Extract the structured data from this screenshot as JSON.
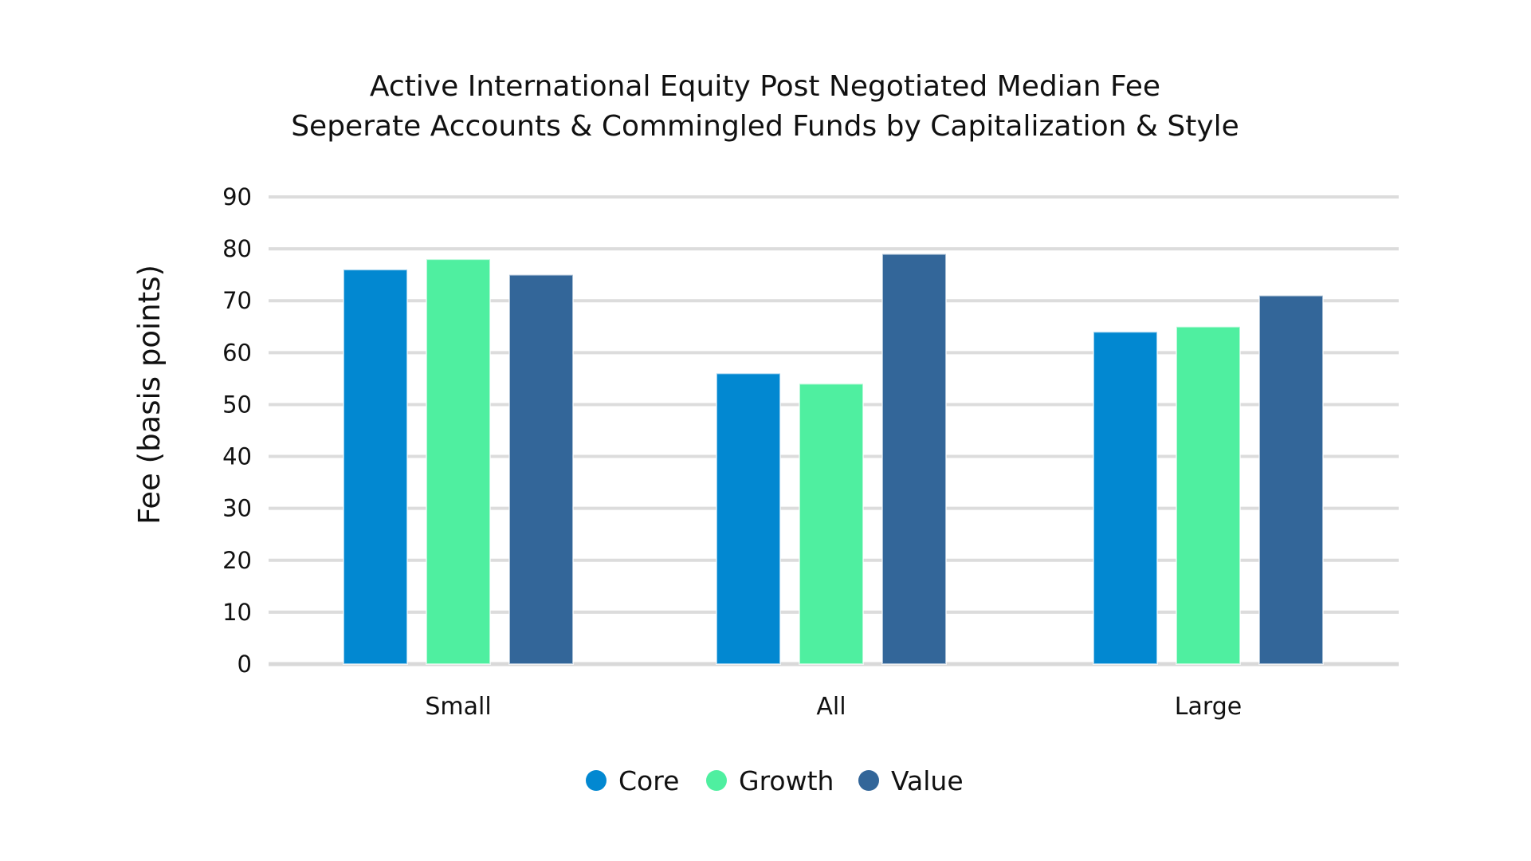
{
  "chart_data": {
    "type": "bar",
    "title": "Active International Equity Post Negotiated Median Fee",
    "subtitle": "Seperate Accounts & Commingled Funds by Capitalization & Style",
    "xlabel": "",
    "ylabel": "Fee (basis points)",
    "categories": [
      "Small",
      "All",
      "Large"
    ],
    "series": [
      {
        "name": "Core",
        "values": [
          76,
          56,
          64
        ],
        "color": "#0288D1"
      },
      {
        "name": "Growth",
        "values": [
          78,
          54,
          65
        ],
        "color": "#4FEFA0"
      },
      {
        "name": "Value",
        "values": [
          75,
          79,
          71
        ],
        "color": "#336699"
      }
    ],
    "ylim": [
      0,
      90
    ],
    "yticks": [
      0,
      10,
      20,
      30,
      40,
      50,
      60,
      70,
      80,
      90
    ],
    "grid": true,
    "legend_position": "bottom-center"
  }
}
